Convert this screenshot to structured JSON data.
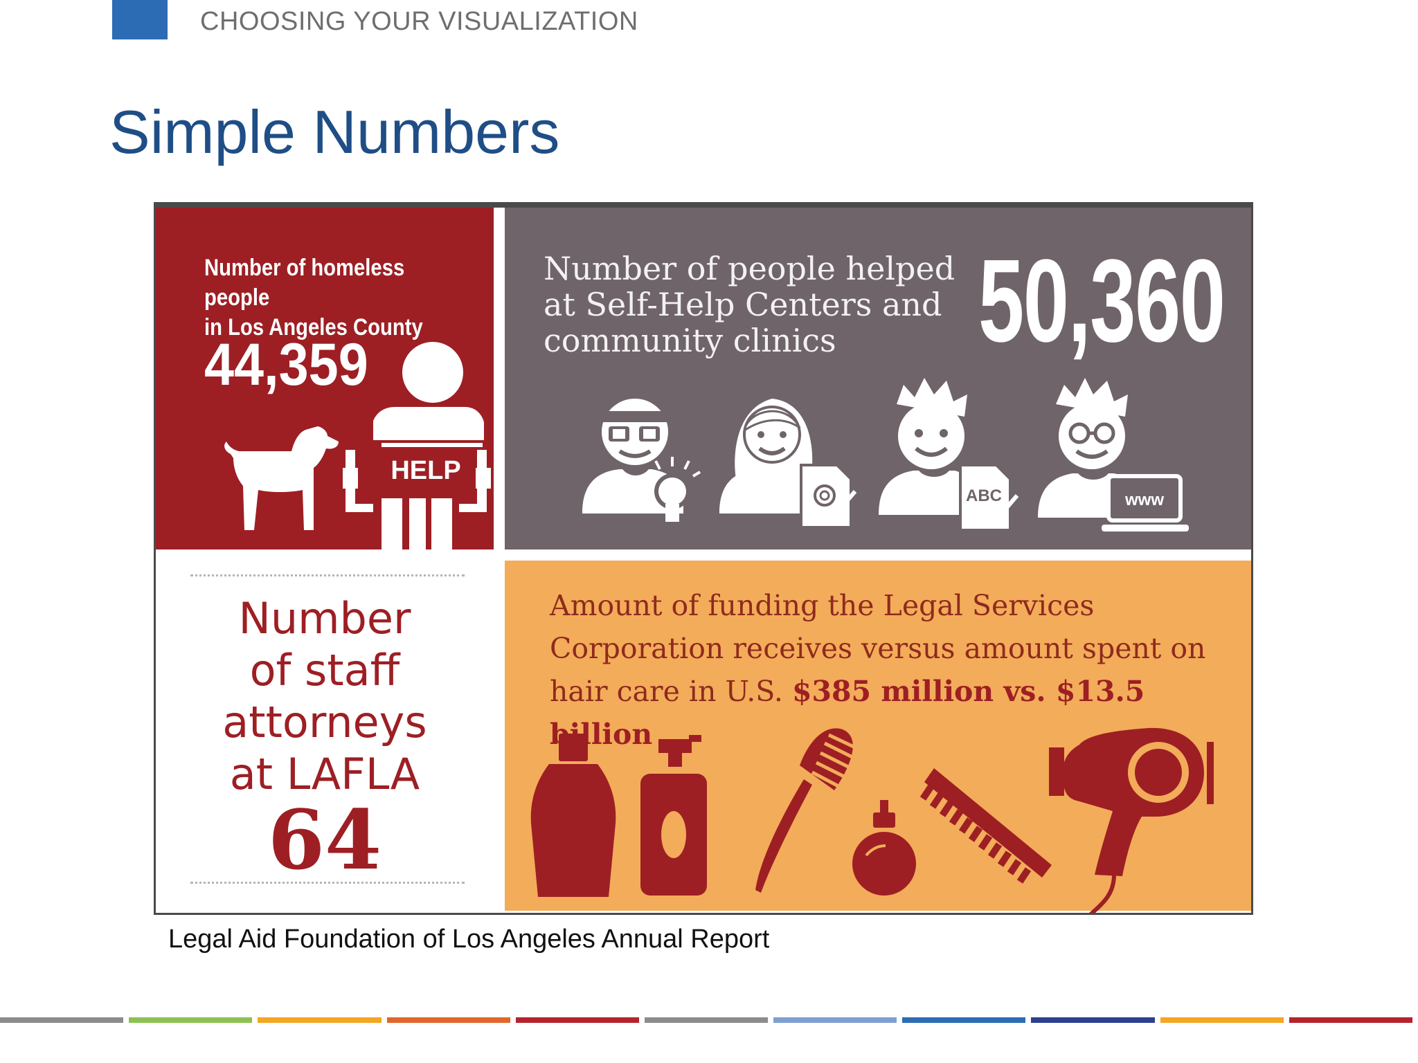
{
  "header": {
    "section_label": "CHOOSING YOUR VISUALIZATION",
    "title": "Simple Numbers",
    "accent_color": "#2b6cb4"
  },
  "infographic": {
    "homeless": {
      "label_line1": "Number of homeless people",
      "label_line2": "in Los Angeles County",
      "value": "44,359",
      "sign_text": "HELP",
      "color": "#9d1f24"
    },
    "self_help": {
      "label_line1": "Number of people helped",
      "label_line2": "at Self-Help Centers and",
      "label_line3": "community clinics",
      "value": "50,360",
      "icon_doc_abc": "ABC",
      "icon_laptop_www": "www",
      "color": "#6e6469"
    },
    "staff": {
      "label_line1": "Number",
      "label_line2": "of staff",
      "label_line3": "attorneys",
      "label_line4": "at LAFLA",
      "value": "64"
    },
    "funding": {
      "line1": "Amount of funding the Legal Services",
      "line2": "Corporation receives versus amount spent on",
      "line3_prefix": "hair care in U.S. ",
      "highlight": "$385 million vs. $13.5 billion",
      "color": "#f3ac5a"
    }
  },
  "caption": "Legal Aid Foundation of Los Angeles Annual Report",
  "footer_bar_colors": [
    "#8c8c8c",
    "#8cc152",
    "#f5a623",
    "#e0672a",
    "#b5232f",
    "#8c8c8c",
    "#7f9fcf",
    "#2b6cb4",
    "#2e3f8f",
    "#f5a623",
    "#b5232f"
  ]
}
